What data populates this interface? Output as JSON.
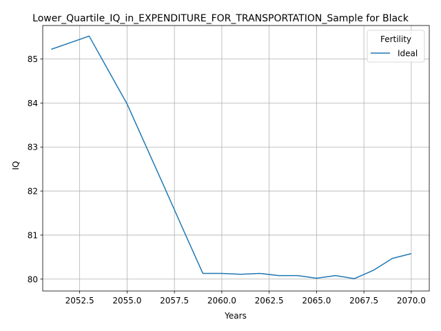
{
  "chart_data": {
    "type": "line",
    "title": "Lower_Quartile_IQ_in_EXPENDITURE_FOR_TRANSPORTATION_Sample for Black",
    "xlabel": "Years",
    "ylabel": "IQ",
    "xlim": [
      2050.55,
      2070.95
    ],
    "ylim": [
      79.73,
      85.76
    ],
    "xticks": [
      2052.5,
      2055.0,
      2057.5,
      2060.0,
      2062.5,
      2065.0,
      2067.5,
      2070.0
    ],
    "xtick_labels": [
      "2052.5",
      "2055.0",
      "2057.5",
      "2060.0",
      "2062.5",
      "2065.0",
      "2067.5",
      "2070.0"
    ],
    "yticks": [
      80,
      81,
      82,
      83,
      84,
      85
    ],
    "ytick_labels": [
      "80",
      "81",
      "82",
      "83",
      "84",
      "85"
    ],
    "grid": true,
    "legend": {
      "title": "Fertility",
      "placement": "top-right"
    },
    "series": [
      {
        "name": "Ideal",
        "color": "#1f77b4",
        "x": [
          2051,
          2052,
          2053,
          2054,
          2055,
          2056,
          2057,
          2058,
          2059,
          2060,
          2061,
          2062,
          2063,
          2064,
          2065,
          2066,
          2067,
          2068,
          2069,
          2070
        ],
        "y": [
          85.22,
          85.37,
          85.52,
          84.75,
          83.98,
          83.02,
          82.06,
          81.09,
          80.13,
          80.13,
          80.11,
          80.13,
          80.08,
          80.08,
          80.02,
          80.08,
          80.01,
          80.2,
          80.47,
          80.58
        ]
      }
    ]
  }
}
